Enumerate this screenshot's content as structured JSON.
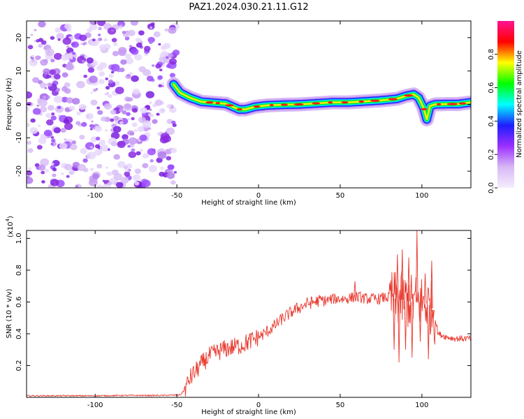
{
  "title": "PAZ1.2024.030.21.11.G12",
  "chart_data": [
    {
      "type": "heatmap",
      "xlabel": "Height of straight line (km)",
      "ylabel": "Frequency (Hz)",
      "xlim": [
        -142,
        130
      ],
      "ylim": [
        -25,
        25
      ],
      "xticks": [
        -100,
        -50,
        0,
        50,
        100
      ],
      "xtick_labels": [
        "-100",
        "-50",
        "0",
        "50",
        "100"
      ],
      "yticks": [
        -20,
        -10,
        0,
        10,
        20
      ],
      "ytick_labels": [
        "-20",
        "-10",
        "0",
        "10",
        "20"
      ],
      "noise_region_x": [
        -142,
        -52
      ],
      "ridge": {
        "x": [
          -52,
          -48,
          -42,
          -35,
          -28,
          -20,
          -12,
          -8,
          -2,
          5,
          15,
          25,
          35,
          45,
          55,
          65,
          75,
          85,
          90,
          95,
          98,
          101,
          103,
          105,
          108,
          115,
          122,
          130
        ],
        "freq": [
          6,
          3.5,
          2,
          0.8,
          0.5,
          0.2,
          -1.5,
          -1.5,
          -0.7,
          -0.3,
          -0.1,
          0,
          0.3,
          0.6,
          0.6,
          0.9,
          1.2,
          1.7,
          2.5,
          3,
          2,
          -1,
          -4.5,
          -0.5,
          0,
          0.1,
          0.1,
          0.6
        ]
      },
      "colorbar": {
        "label": "Normalized spectral amplitude",
        "range": [
          0,
          1
        ],
        "ticks": [
          0.0,
          0.2,
          0.4,
          0.6,
          0.8
        ],
        "tick_labels": [
          "0.0",
          "0.2",
          "0.4",
          "0.6",
          "0.8"
        ],
        "colors": [
          "#f5eefe",
          "#d8b8f5",
          "#9b30ff",
          "#1e1eff",
          "#00ffff",
          "#00ff00",
          "#ffff00",
          "#ff0000",
          "#ff1493"
        ]
      }
    },
    {
      "type": "line",
      "xlabel": "Height of straight line (km)",
      "ylabel": "SNR (10 * v/v)",
      "scale_label": "(x10",
      "scale_exponent": "4",
      "scale_close": ")",
      "xlim": [
        -142,
        130
      ],
      "ylim": [
        0,
        1.05
      ],
      "xticks": [
        -100,
        -50,
        0,
        50,
        100
      ],
      "xtick_labels": [
        "-100",
        "-50",
        "0",
        "50",
        "100"
      ],
      "yticks": [
        0.2,
        0.4,
        0.6,
        0.8,
        1.0
      ],
      "ytick_labels": [
        "0.2",
        "0.4",
        "0.6",
        "0.8",
        "1.0"
      ],
      "series": [
        {
          "color": "#e8382d",
          "x": [
            -142,
            -120,
            -100,
            -80,
            -60,
            -48,
            -45,
            -42,
            -38,
            -34,
            -30,
            -26,
            -22,
            -18,
            -14,
            -10,
            -6,
            -2,
            2,
            6,
            10,
            14,
            18,
            22,
            26,
            30,
            34,
            38,
            42,
            46,
            50,
            54,
            58,
            62,
            66,
            70,
            74,
            78,
            82,
            86,
            90,
            94,
            97,
            100,
            104,
            107,
            110,
            115,
            120,
            125,
            130
          ],
          "y": [
            0.01,
            0.01,
            0.01,
            0.012,
            0.012,
            0.015,
            0.05,
            0.12,
            0.17,
            0.22,
            0.26,
            0.28,
            0.3,
            0.31,
            0.32,
            0.33,
            0.35,
            0.37,
            0.39,
            0.42,
            0.45,
            0.49,
            0.52,
            0.55,
            0.57,
            0.59,
            0.6,
            0.61,
            0.61,
            0.62,
            0.62,
            0.62,
            0.63,
            0.63,
            0.62,
            0.62,
            0.62,
            0.63,
            0.62,
            0.62,
            0.61,
            0.6,
            0.6,
            0.6,
            0.58,
            0.55,
            0.4,
            0.38,
            0.37,
            0.37,
            0.37
          ],
          "spikes": [
            {
              "x": 59,
              "y": 0.73
            },
            {
              "x": 83,
              "y": 0.3
            },
            {
              "x": 85,
              "y": 0.9
            },
            {
              "x": 86,
              "y": 0.22
            },
            {
              "x": 88,
              "y": 0.93
            },
            {
              "x": 90,
              "y": 0.3
            },
            {
              "x": 92,
              "y": 0.88
            },
            {
              "x": 94,
              "y": 0.25
            },
            {
              "x": 97,
              "y": 1.05
            },
            {
              "x": 99,
              "y": 0.35
            },
            {
              "x": 102,
              "y": 0.78
            },
            {
              "x": 104,
              "y": 0.24
            },
            {
              "x": 106,
              "y": 0.86
            },
            {
              "x": 107,
              "y": 0.5
            }
          ]
        }
      ]
    }
  ]
}
